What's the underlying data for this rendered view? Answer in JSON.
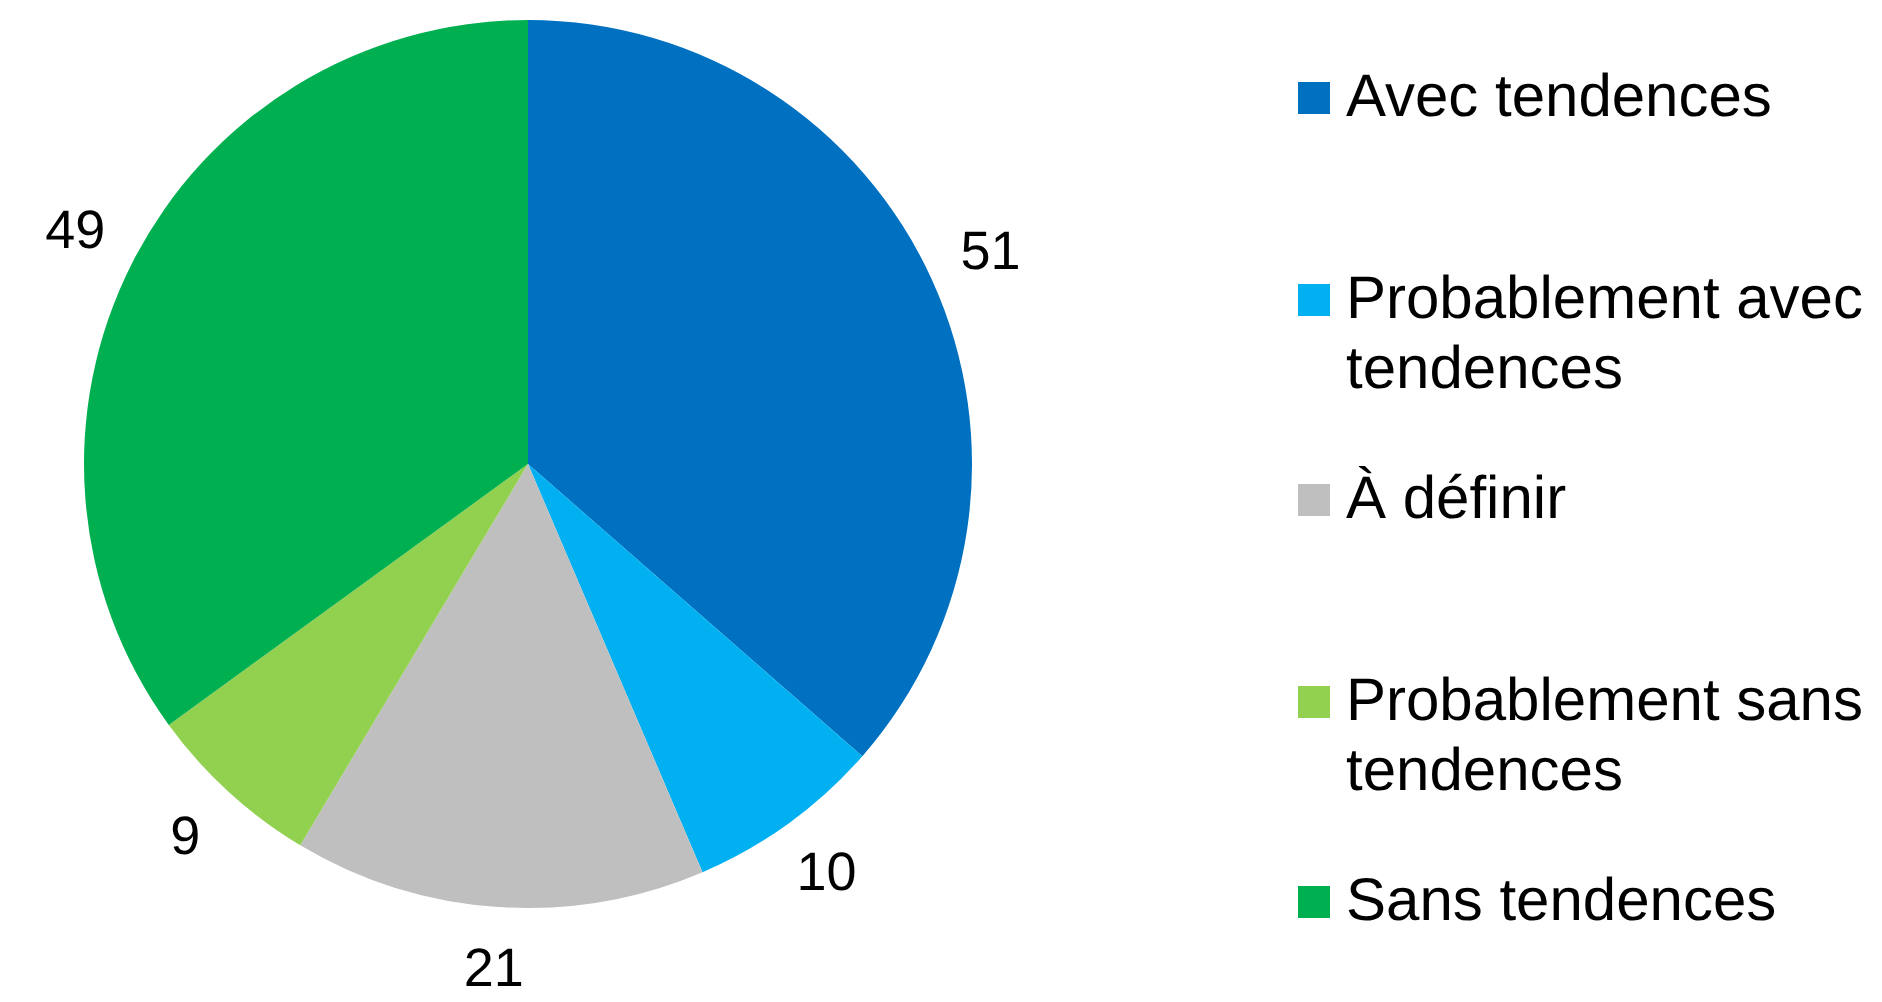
{
  "chart_data": {
    "type": "pie",
    "categories": [
      "Avec tendences",
      "Probablement avec tendences",
      "À définir",
      "Probablement sans tendences",
      "Sans tendences"
    ],
    "values": [
      51,
      10,
      21,
      9,
      49
    ],
    "colors": [
      "#0070c0",
      "#00b0f0",
      "#bfbfbf",
      "#92d050",
      "#00b050"
    ],
    "data_labels": true,
    "legend": "right"
  }
}
